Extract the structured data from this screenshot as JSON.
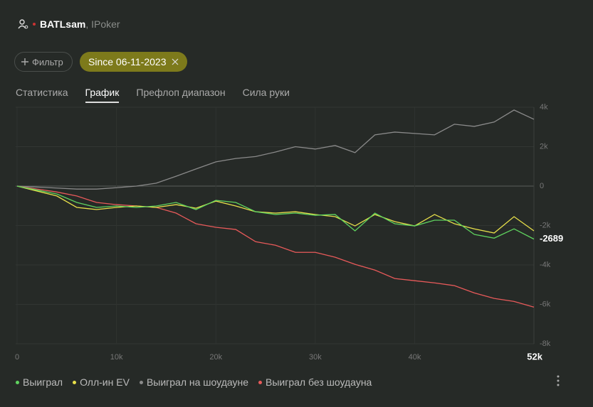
{
  "header": {
    "player": "BATLsam",
    "site": ", IPoker"
  },
  "filters": {
    "button": "Фильтр",
    "chip": "Since 06-11-2023"
  },
  "tabs": {
    "items": [
      "Статистика",
      "График",
      "Префлоп диапазон",
      "Сила руки"
    ],
    "active": 1
  },
  "chart_data": {
    "type": "line",
    "x": [
      0,
      2000,
      4000,
      6000,
      8000,
      10000,
      12000,
      14000,
      16000,
      18000,
      20000,
      22000,
      24000,
      26000,
      28000,
      30000,
      32000,
      34000,
      36000,
      38000,
      40000,
      42000,
      44000,
      46000,
      48000,
      50000,
      52000
    ],
    "series": [
      {
        "name": "Выиграл",
        "color": "#5fd35f",
        "values": [
          0,
          -200,
          -400,
          -830,
          -1080,
          -1010,
          -1080,
          -1010,
          -830,
          -1190,
          -720,
          -830,
          -1300,
          -1440,
          -1370,
          -1480,
          -1440,
          -2270,
          -1370,
          -1910,
          -2020,
          -1730,
          -1730,
          -2450,
          -2640,
          -2170,
          -2689
        ]
      },
      {
        "name": "Олл-ин EV",
        "color": "#e8e04a",
        "values": [
          0,
          -250,
          -500,
          -1080,
          -1190,
          -1080,
          -1010,
          -1080,
          -940,
          -1120,
          -760,
          -1010,
          -1300,
          -1370,
          -1300,
          -1440,
          -1550,
          -2020,
          -1440,
          -1800,
          -2020,
          -1440,
          -1910,
          -2170,
          -2380,
          -1550,
          -2270
        ]
      },
      {
        "name": "Выиграл на шоудауне",
        "color": "#8a8a8a",
        "values": [
          0,
          -50,
          -100,
          -150,
          -150,
          -80,
          0,
          150,
          500,
          870,
          1230,
          1400,
          1500,
          1730,
          2000,
          1880,
          2060,
          1700,
          2600,
          2740,
          2670,
          2600,
          3140,
          3030,
          3250,
          3860,
          3390
        ]
      },
      {
        "name": "Выиграл без шоудауна",
        "color": "#e85a5a",
        "values": [
          0,
          -150,
          -300,
          -500,
          -830,
          -940,
          -1010,
          -1080,
          -1370,
          -1910,
          -2090,
          -2200,
          -2820,
          -3000,
          -3360,
          -3360,
          -3610,
          -3970,
          -4260,
          -4690,
          -4800,
          -4910,
          -5050,
          -5420,
          -5700,
          -5850,
          -6140
        ]
      }
    ],
    "xlim": [
      0,
      52000
    ],
    "xticks": [
      0,
      {
        "value": 10000,
        "label": "10k"
      },
      {
        "value": 20000,
        "label": "20k"
      },
      {
        "value": 30000,
        "label": "30k"
      },
      {
        "value": 40000,
        "label": "40k"
      },
      {
        "value": 52000,
        "label": "52k"
      }
    ],
    "ylim": [
      -8000,
      4000
    ],
    "yticks": [
      {
        "value": 4000,
        "label": "4k"
      },
      {
        "value": 2000,
        "label": "2k"
      },
      0,
      {
        "value": -2000,
        "label": "-2k"
      },
      {
        "value": -4000,
        "label": "-4k"
      },
      {
        "value": -6000,
        "label": "-6k"
      },
      {
        "value": -8000,
        "label": "-8k"
      }
    ],
    "grid": true
  }
}
